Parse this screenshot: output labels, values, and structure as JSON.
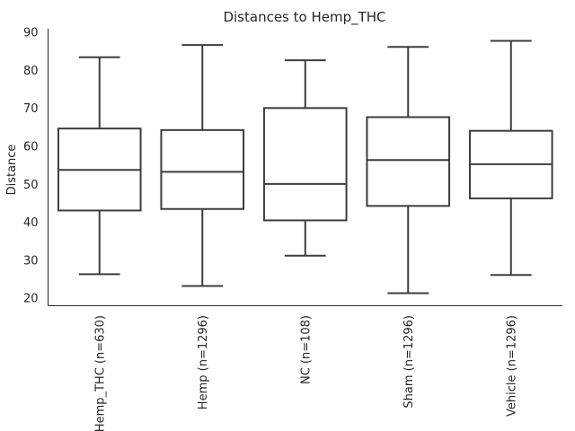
{
  "chart_data": {
    "type": "box",
    "title": "Distances to Hemp_THC",
    "xlabel": "",
    "ylabel": "Distance",
    "ylim": [
      18,
      91
    ],
    "yticks": [
      20,
      30,
      40,
      50,
      60,
      70,
      80,
      90
    ],
    "grid": false,
    "categories": [
      "Hemp_THC (n=630)",
      "Hemp (n=1296)",
      "NC (n=108)",
      "Sham (n=1296)",
      "Vehicle (n=1296)"
    ],
    "boxes": [
      {
        "label": "Hemp_THC (n=630)",
        "min": 26.3,
        "q1": 43.1,
        "median": 53.8,
        "q3": 64.7,
        "max": 83.5
      },
      {
        "label": "Hemp (n=1296)",
        "min": 23.2,
        "q1": 43.5,
        "median": 53.3,
        "q3": 64.3,
        "max": 86.7
      },
      {
        "label": "NC (n=108)",
        "min": 31.2,
        "q1": 40.5,
        "median": 50.1,
        "q3": 70.1,
        "max": 82.7
      },
      {
        "label": "Sham (n=1296)",
        "min": 21.3,
        "q1": 44.3,
        "median": 56.4,
        "q3": 67.7,
        "max": 86.2
      },
      {
        "label": "Vehicle (n=1296)",
        "min": 26.1,
        "q1": 46.3,
        "median": 55.3,
        "q3": 64.1,
        "max": 87.8
      }
    ]
  }
}
